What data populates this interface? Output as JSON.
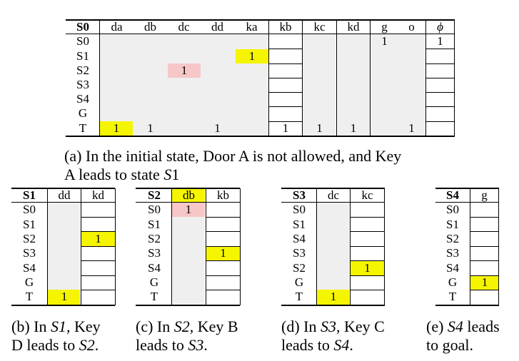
{
  "table_a": {
    "corner": "S0",
    "columns": [
      "da",
      "db",
      "dc",
      "dd",
      "ka",
      "kb",
      "kc",
      "kd",
      "g",
      "o",
      "ϕ"
    ],
    "rows": [
      "S0",
      "S1",
      "S2",
      "S3",
      "S4",
      "G",
      "T"
    ],
    "cells": {
      "S0_g": "1",
      "S0_phi": "1",
      "S1_ka": "1",
      "S2_dc": "1",
      "T_da": "1",
      "T_db": "1",
      "T_dd": "1",
      "T_kb": "1",
      "T_kc": "1",
      "T_kd": "1",
      "T_o": "1"
    }
  },
  "caption_a": {
    "line1": "(a) In the initial state, Door A is not allowed, and Key",
    "line2_prefix": "A leads to state ",
    "line2_state": "S",
    "line2_index": "1"
  },
  "table_b": {
    "corner": "S1",
    "columns": [
      "dd",
      "kd"
    ],
    "rows": [
      "S0",
      "S1",
      "S2",
      "S3",
      "S4",
      "G",
      "T"
    ],
    "cell_s2_kd": "1",
    "cell_t_dd": "1"
  },
  "caption_b": {
    "line1_prefix": "(b) In ",
    "line1_state": "S1",
    "line1_suffix": ", Key",
    "line2_prefix": "D leads to ",
    "line2_state": "S2",
    "line2_suffix": "."
  },
  "table_c": {
    "corner": "S2",
    "columns": [
      "db",
      "kb"
    ],
    "rows": [
      "S0",
      "S1",
      "S2",
      "S3",
      "S4",
      "G",
      "T"
    ],
    "cell_s0_db": "1",
    "cell_s3_kb": "1"
  },
  "caption_c": {
    "line1_prefix": "(c) In ",
    "line1_state": "S2",
    "line1_suffix": ", Key B",
    "line2_prefix": "leads to ",
    "line2_state": "S3",
    "line2_suffix": "."
  },
  "table_d": {
    "corner": "S3",
    "columns": [
      "dc",
      "kc"
    ],
    "rows": [
      "S0",
      "S1",
      "S4",
      "S3",
      "S2",
      "G",
      "T"
    ],
    "cell_s2_kc": "1",
    "cell_t_dc": "1"
  },
  "caption_d": {
    "line1_prefix": "(d) In ",
    "line1_state": "S3",
    "line1_suffix": ", Key C",
    "line2_prefix": "leads to ",
    "line2_state": "S4",
    "line2_suffix": "."
  },
  "table_e": {
    "corner": "S4",
    "columns": [
      "g"
    ],
    "rows": [
      "S0",
      "S1",
      "S2",
      "S3",
      "S4",
      "G",
      "T"
    ],
    "cell_g_g": "1"
  },
  "caption_e": {
    "line1_prefix": "(e) ",
    "line1_state": "S4",
    "line1_suffix": " leads",
    "line2": "to goal."
  },
  "colors": {
    "yellow": "#f5f500",
    "pink": "#f7c6c6",
    "gray": "#efefef"
  }
}
